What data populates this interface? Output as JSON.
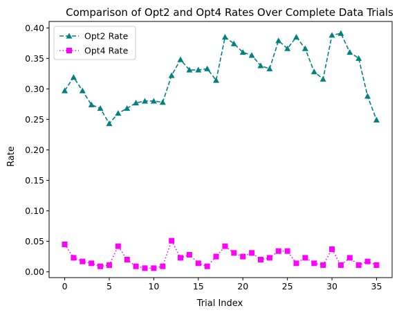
{
  "chart_data": {
    "type": "line",
    "title": "Comparison of Opt2 and Opt4 Rates Over Complete Data Trials",
    "xlabel": "Trial Index",
    "ylabel": "Rate",
    "xlim": [
      -1.75,
      36.75
    ],
    "ylim": [
      -0.0095,
      0.4105
    ],
    "xticks": [
      0,
      5,
      10,
      15,
      20,
      25,
      30,
      35
    ],
    "yticks": [
      0.0,
      0.05,
      0.1,
      0.15,
      0.2,
      0.25,
      0.3,
      0.35,
      0.4
    ],
    "xtick_labels": [
      "0",
      "5",
      "10",
      "15",
      "20",
      "25",
      "30",
      "35"
    ],
    "ytick_labels": [
      "0.00",
      "0.05",
      "0.10",
      "0.15",
      "0.20",
      "0.25",
      "0.30",
      "0.35",
      "0.40"
    ],
    "grid": false,
    "legend_position": "top-left",
    "x": [
      0,
      1,
      2,
      3,
      4,
      5,
      6,
      7,
      8,
      9,
      10,
      11,
      12,
      13,
      14,
      15,
      16,
      17,
      18,
      19,
      20,
      21,
      22,
      23,
      24,
      25,
      26,
      27,
      28,
      29,
      30,
      31,
      32,
      33,
      34,
      35
    ],
    "series": [
      {
        "name": "Opt2 Rate",
        "color": "#008080",
        "line_style": "dashed",
        "marker": "triangle",
        "values": [
          0.297,
          0.319,
          0.297,
          0.274,
          0.268,
          0.243,
          0.26,
          0.268,
          0.277,
          0.28,
          0.28,
          0.278,
          0.322,
          0.348,
          0.331,
          0.331,
          0.333,
          0.314,
          0.385,
          0.374,
          0.36,
          0.355,
          0.338,
          0.333,
          0.379,
          0.366,
          0.385,
          0.366,
          0.328,
          0.316,
          0.388,
          0.391,
          0.36,
          0.35,
          0.288,
          0.249
        ]
      },
      {
        "name": "Opt4 Rate",
        "color": "#ff00ff",
        "line_style": "dotted",
        "marker": "square",
        "values": [
          0.045,
          0.023,
          0.017,
          0.014,
          0.009,
          0.011,
          0.042,
          0.02,
          0.009,
          0.006,
          0.006,
          0.009,
          0.051,
          0.023,
          0.028,
          0.014,
          0.009,
          0.025,
          0.042,
          0.031,
          0.025,
          0.031,
          0.02,
          0.023,
          0.034,
          0.034,
          0.014,
          0.023,
          0.014,
          0.011,
          0.037,
          0.011,
          0.023,
          0.011,
          0.017,
          0.011
        ]
      }
    ]
  }
}
